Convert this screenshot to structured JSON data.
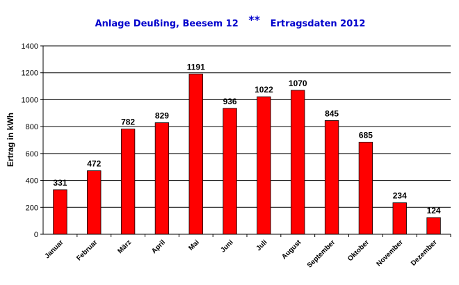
{
  "chart_data": {
    "type": "bar",
    "title_parts": [
      "Anlage Deußing, Beesem 12",
      "**",
      "Ertragsdaten 2012"
    ],
    "ylabel": "Ertrag in kWh",
    "xlabel": "",
    "categories": [
      "Januar",
      "Februar",
      "März",
      "April",
      "Mai",
      "Juni",
      "Juli",
      "August",
      "September",
      "Oktober",
      "November",
      "Dezember"
    ],
    "values": [
      331,
      472,
      782,
      829,
      1191,
      936,
      1022,
      1070,
      845,
      685,
      234,
      124
    ],
    "ylim": [
      0,
      1400
    ],
    "yticks": [
      0,
      200,
      400,
      600,
      800,
      1000,
      1200,
      1400
    ],
    "grid": true,
    "legend": "none",
    "colors": {
      "bar": "#ff0000",
      "bar_edge": "#000000",
      "title": "#0000cc",
      "text": "#000000",
      "grid": "#000000"
    }
  }
}
